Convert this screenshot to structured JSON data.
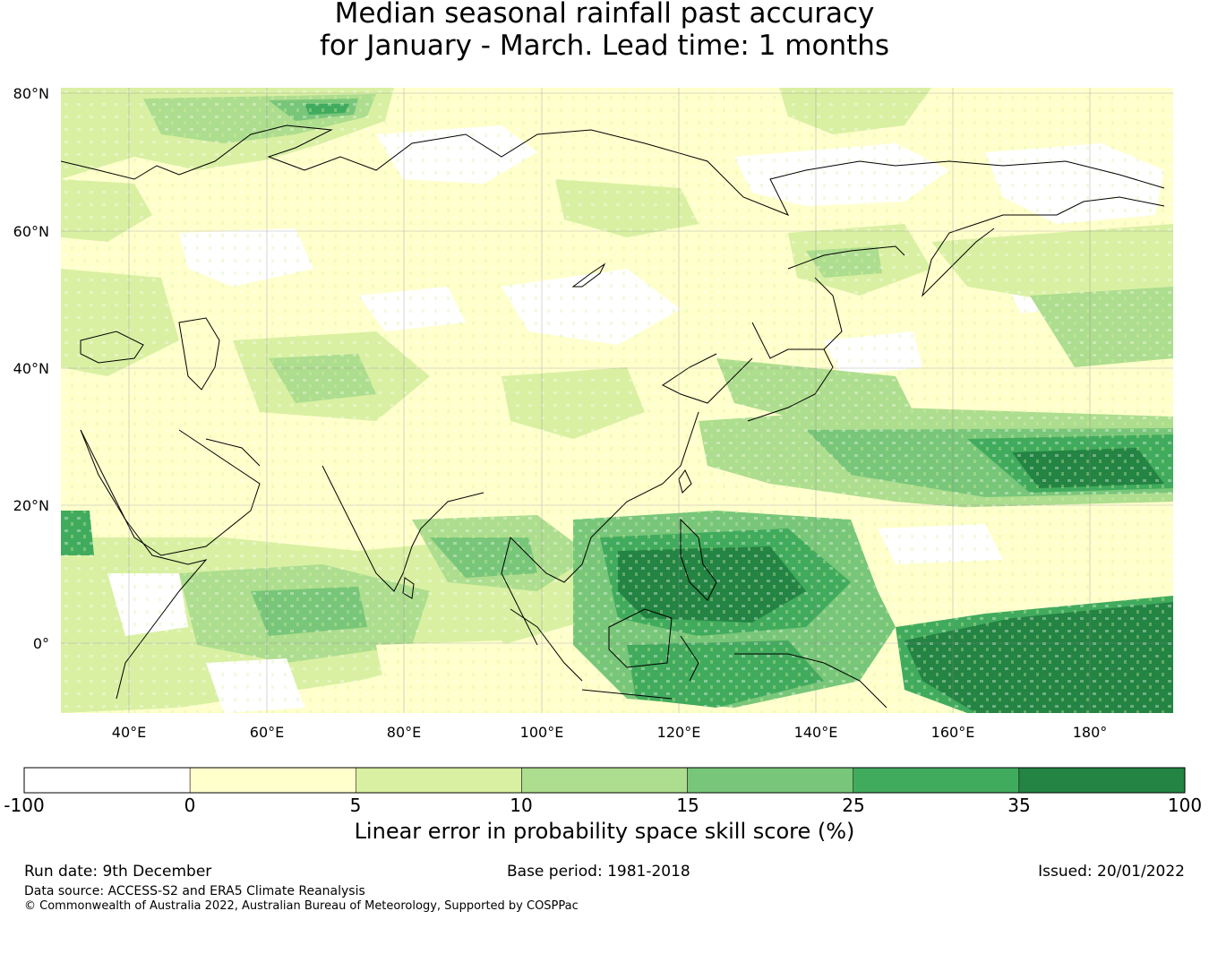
{
  "title": {
    "line1": "Median seasonal rainfall past accuracy",
    "line2": "for January - March. Lead time: 1 months"
  },
  "map": {
    "region": "Asia and western Pacific",
    "lat_labels": [
      "80°N",
      "60°N",
      "40°N",
      "20°N",
      "0°"
    ],
    "lon_labels": [
      "40°E",
      "60°E",
      "80°E",
      "100°E",
      "120°E",
      "140°E",
      "160°E",
      "180°"
    ],
    "lat_values": [
      80,
      60,
      40,
      20,
      0
    ],
    "lon_values": [
      40,
      60,
      80,
      100,
      120,
      140,
      160,
      180
    ],
    "lat_range": [
      -10,
      80
    ],
    "lon_range": [
      30,
      192
    ],
    "grid": true
  },
  "colorbar": {
    "title": "Linear error in probability space skill score (%)",
    "tick_labels": [
      "-100",
      "0",
      "5",
      "10",
      "15",
      "25",
      "35",
      "100"
    ],
    "colors": [
      "#ffffff",
      "#ffffcc",
      "#d9f0a3",
      "#addd8e",
      "#78c679",
      "#41ab5d",
      "#238443"
    ]
  },
  "footer": {
    "run_date": "Run date: 9th December",
    "base_period": "Base period: 1981-2018",
    "issued": "Issued: 20/01/2022",
    "data_source": "Data source: ACCESS-S2 and ERA5 Climate Reanalysis",
    "copyright": "© Commonwealth of Australia 2022, Australian Bureau of Meteorology, Supported by COSPPac"
  }
}
